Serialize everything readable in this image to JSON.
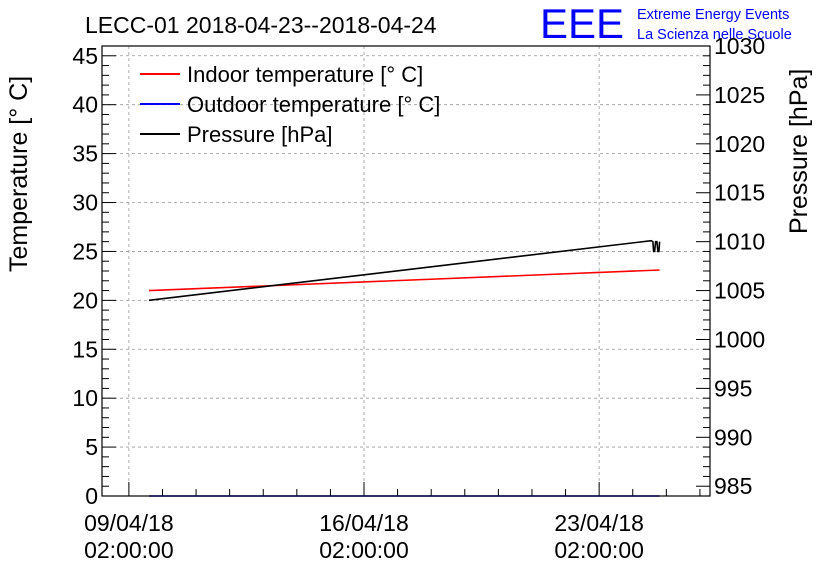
{
  "chart_data": {
    "type": "line",
    "title": "LECC-01 2018-04-23--2018-04-24",
    "logo": {
      "text": "EEE",
      "line1": "Extreme Energy Events",
      "line2": "La Scienza nelle Scuole"
    },
    "ylabel_left": "Temperature [° C]",
    "ylabel_right": "Pressure [hPa]",
    "ylim_left": [
      0,
      46
    ],
    "ylim_right": [
      984.0,
      1030
    ],
    "left_ticks": [
      0,
      5,
      10,
      15,
      20,
      25,
      30,
      35,
      40,
      45
    ],
    "right_ticks": [
      985,
      990,
      995,
      1000,
      1005,
      1010,
      1015,
      1020,
      1025,
      1030
    ],
    "x_ticks": [
      {
        "day": 0,
        "line1": "09/04/18",
        "line2": "02:00:00"
      },
      {
        "day": 7,
        "line1": "16/04/18",
        "line2": "02:00:00"
      },
      {
        "day": 14,
        "line1": "23/04/18",
        "line2": "02:00:00"
      }
    ],
    "xlim_days": [
      -0.8,
      17.3
    ],
    "grid": true,
    "legend_position": "top-left",
    "colors": {
      "indoor": "#ff0000",
      "outdoor": "#0000ff",
      "pressure": "#000000"
    },
    "series": [
      {
        "name": "Indoor temperature [° C]",
        "axis": "left",
        "color": "#ff0000",
        "x_days": [
          0.6,
          15.8
        ],
        "values": [
          21.0,
          23.1
        ]
      },
      {
        "name": "Outdoor temperature [° C]",
        "axis": "left",
        "color": "#0000ff",
        "x_days": [
          0.6,
          15.8
        ],
        "values": [
          0.0,
          0.0
        ]
      },
      {
        "name": "Pressure [hPa]",
        "axis": "right",
        "color": "#000000",
        "x_days": [
          0.6,
          15.55,
          15.6,
          15.62,
          15.65,
          15.68,
          15.72,
          15.75,
          15.78,
          15.8
        ],
        "values": [
          1004.0,
          1010.1,
          1010.0,
          1009.0,
          1009.0,
          1010.0,
          1010.0,
          1009.0,
          1009.0,
          1010.0
        ]
      }
    ]
  }
}
